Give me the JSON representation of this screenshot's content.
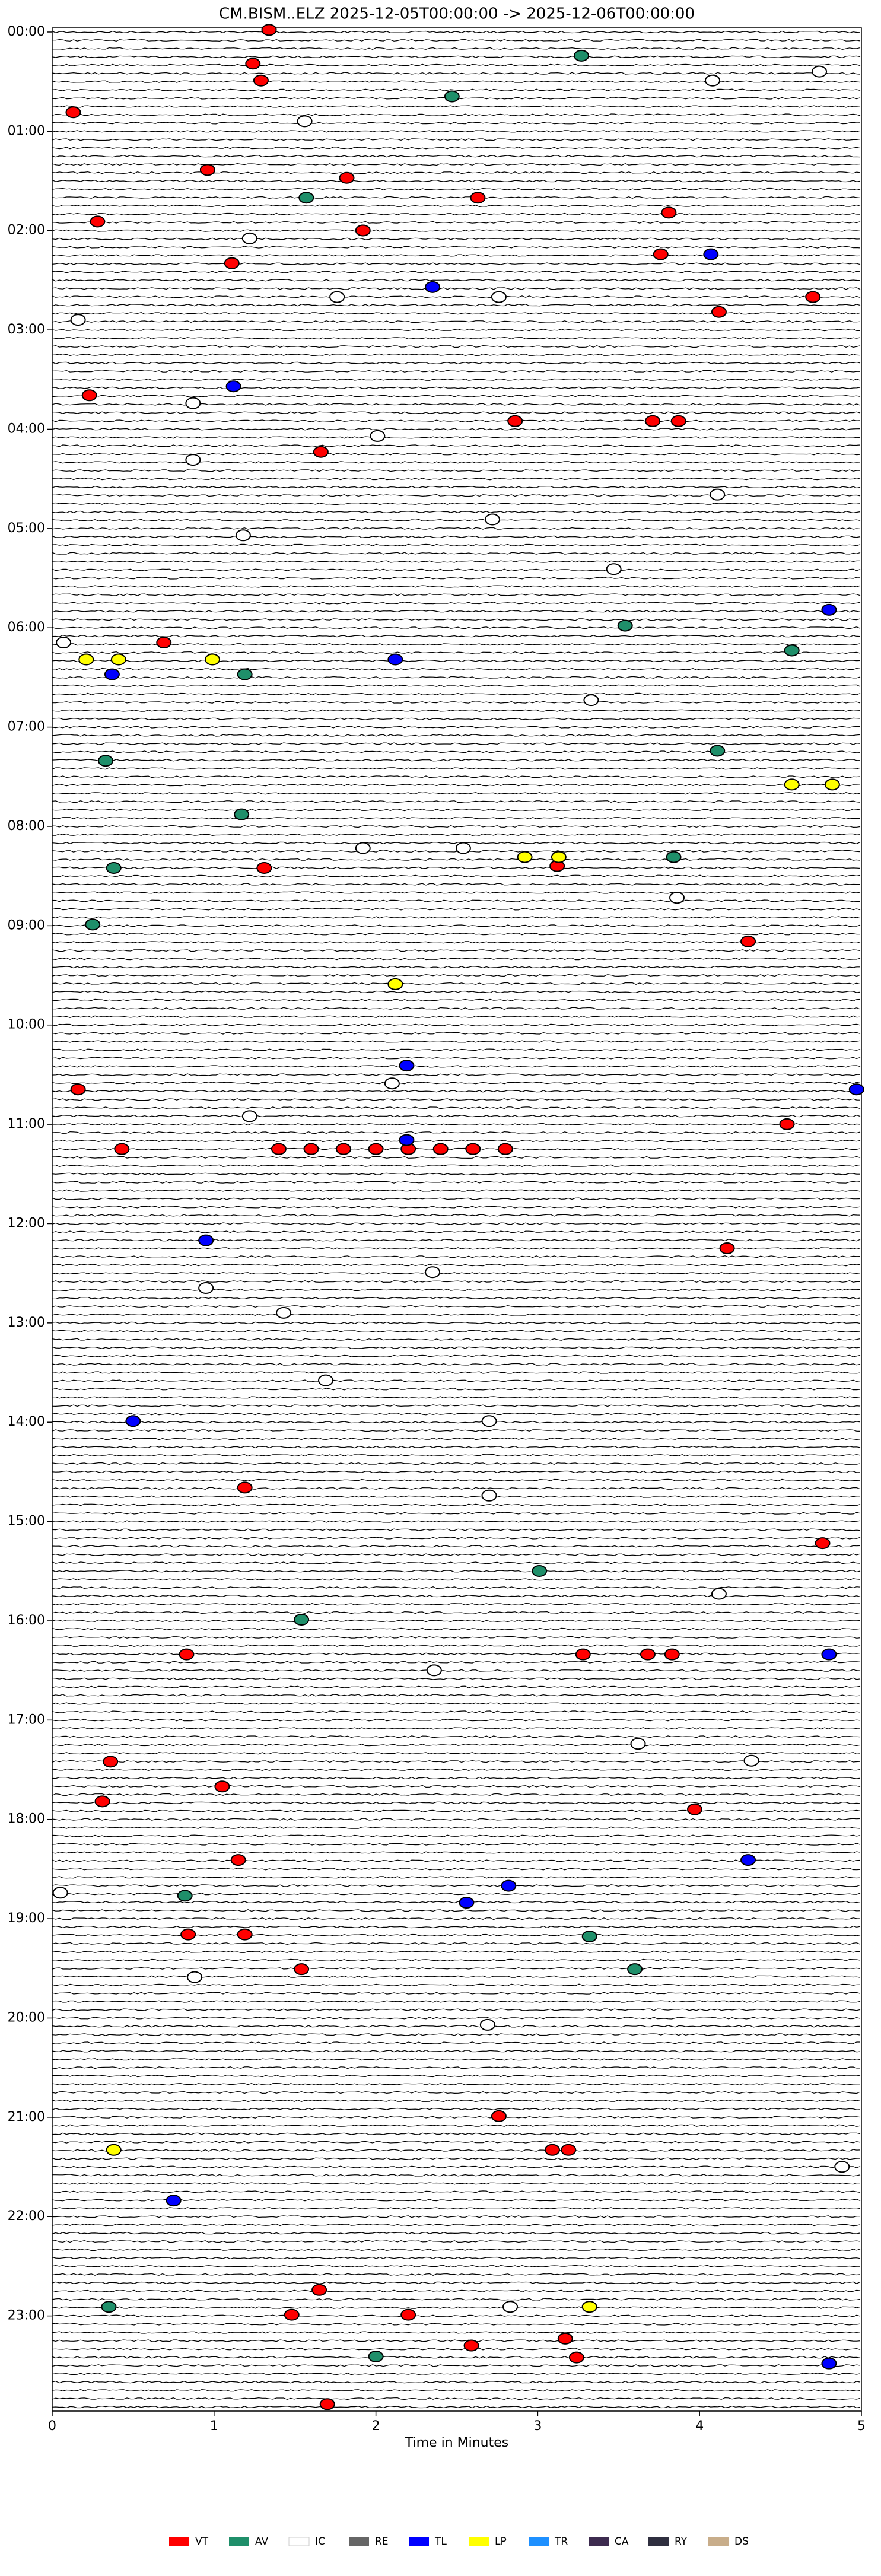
{
  "chart_data": {
    "type": "scatter",
    "title": "CM.BISM..ELZ  2025-12-05T00:00:00 -> 2025-12-06T00:00:00",
    "x_label": "Time in Minutes",
    "xlim": [
      0,
      5
    ],
    "xticks": [
      0,
      1,
      2,
      3,
      4,
      5
    ],
    "ylim": [
      0,
      24
    ],
    "yticks": [
      {
        "value": 0,
        "label": "00:00"
      },
      {
        "value": 1,
        "label": "01:00"
      },
      {
        "value": 2,
        "label": "02:00"
      },
      {
        "value": 3,
        "label": "03:00"
      },
      {
        "value": 4,
        "label": "04:00"
      },
      {
        "value": 5,
        "label": "05:00"
      },
      {
        "value": 6,
        "label": "06:00"
      },
      {
        "value": 7,
        "label": "07:00"
      },
      {
        "value": 8,
        "label": "08:00"
      },
      {
        "value": 9,
        "label": "09:00"
      },
      {
        "value": 10,
        "label": "10:00"
      },
      {
        "value": 11,
        "label": "11:00"
      },
      {
        "value": 12,
        "label": "12:00"
      },
      {
        "value": 13,
        "label": "13:00"
      },
      {
        "value": 14,
        "label": "14:00"
      },
      {
        "value": 15,
        "label": "15:00"
      },
      {
        "value": 16,
        "label": "16:00"
      },
      {
        "value": 17,
        "label": "17:00"
      },
      {
        "value": 18,
        "label": "18:00"
      },
      {
        "value": 19,
        "label": "19:00"
      },
      {
        "value": 20,
        "label": "20:00"
      },
      {
        "value": 21,
        "label": "21:00"
      },
      {
        "value": 22,
        "label": "22:00"
      },
      {
        "value": 23,
        "label": "23:00"
      }
    ],
    "series": [
      {
        "name": "VT",
        "color": "#ff0000",
        "x": [
          1.34,
          1.24,
          1.29,
          0.13,
          0.96,
          1.82,
          2.63,
          3.81,
          0.28,
          1.92,
          3.76,
          1.11,
          4.12,
          4.7,
          0.23,
          2.86,
          3.71,
          3.87,
          1.66,
          0.69,
          1.31,
          3.12,
          4.3,
          0.16,
          4.54,
          0.43,
          1.4,
          1.6,
          1.8,
          2.0,
          2.2,
          2.4,
          2.6,
          2.8,
          4.17,
          1.19,
          4.76,
          3.28,
          3.68,
          3.83,
          0.83,
          0.36,
          0.31,
          1.05,
          1.15,
          0.84,
          1.19,
          1.54,
          2.76,
          3.09,
          3.19,
          1.65,
          1.48,
          2.2,
          2.59,
          3.17,
          3.24,
          1.7,
          3.97
        ],
        "y": [
          0.02,
          0.36,
          0.53,
          0.85,
          1.43,
          1.51,
          1.71,
          1.86,
          1.95,
          2.04,
          2.28,
          2.37,
          2.86,
          2.71,
          3.7,
          3.96,
          3.96,
          3.96,
          4.27,
          6.19,
          8.46,
          8.44,
          9.2,
          10.69,
          11.04,
          11.29,
          11.29,
          11.29,
          11.29,
          11.29,
          11.29,
          11.29,
          11.29,
          11.29,
          12.29,
          14.7,
          15.26,
          16.38,
          16.38,
          16.38,
          16.38,
          17.46,
          17.86,
          17.71,
          18.45,
          19.2,
          19.2,
          19.55,
          21.03,
          21.37,
          21.37,
          22.78,
          23.03,
          23.03,
          23.34,
          23.27,
          23.46,
          23.93,
          17.94
        ]
      },
      {
        "name": "AV",
        "color": "#1f8f6a",
        "x": [
          3.27,
          2.47,
          1.57,
          3.54,
          4.57,
          1.19,
          4.11,
          0.33,
          1.17,
          0.38,
          3.84,
          0.25,
          3.01,
          1.54,
          0.82,
          3.32,
          3.6,
          0.35,
          2.0
        ],
        "y": [
          0.28,
          0.69,
          1.71,
          6.02,
          6.27,
          6.51,
          7.28,
          7.38,
          7.92,
          8.46,
          8.35,
          9.03,
          15.54,
          16.03,
          18.81,
          19.22,
          19.55,
          22.95,
          23.45
        ]
      },
      {
        "name": "IC",
        "color": "#ffffff",
        "x": [
          4.08,
          4.74,
          1.56,
          1.22,
          1.76,
          2.76,
          0.16,
          0.87,
          2.01,
          0.87,
          4.11,
          1.18,
          2.72,
          3.47,
          0.07,
          3.33,
          1.92,
          2.54,
          3.86,
          2.1,
          1.22,
          2.35,
          0.95,
          1.43,
          1.69,
          2.7,
          2.7,
          4.12,
          2.36,
          3.62,
          4.32,
          0.05,
          0.88,
          2.69,
          4.88,
          2.83
        ],
        "y": [
          0.53,
          0.44,
          0.94,
          2.12,
          2.71,
          2.71,
          2.94,
          3.78,
          4.11,
          4.35,
          4.7,
          5.11,
          4.95,
          5.45,
          6.19,
          6.77,
          8.26,
          8.26,
          8.76,
          10.63,
          10.96,
          12.53,
          12.69,
          12.94,
          13.62,
          14.03,
          14.78,
          15.77,
          16.54,
          17.28,
          17.45,
          18.78,
          19.63,
          20.11,
          21.54,
          22.95
        ]
      },
      {
        "name": "RE",
        "color": "#666666",
        "x": [],
        "y": []
      },
      {
        "name": "TL",
        "color": "#0000ff",
        "x": [
          4.07,
          2.35,
          1.12,
          0.37,
          2.12,
          4.8,
          2.19,
          4.97,
          2.19,
          0.95,
          0.5,
          4.8,
          4.3,
          2.82,
          2.56,
          0.75,
          4.8
        ],
        "y": [
          2.28,
          2.61,
          3.61,
          6.51,
          6.36,
          5.86,
          10.45,
          10.69,
          11.2,
          12.21,
          14.03,
          16.38,
          18.45,
          18.71,
          18.88,
          21.88,
          23.52
        ]
      },
      {
        "name": "LP",
        "color": "#ffff00",
        "x": [
          0.21,
          0.41,
          0.99,
          2.92,
          3.13,
          2.12,
          4.57,
          4.82,
          0.38,
          3.32
        ],
        "y": [
          6.36,
          6.36,
          6.36,
          8.35,
          8.35,
          9.63,
          7.62,
          7.62,
          21.37,
          22.95
        ]
      },
      {
        "name": "TR",
        "color": "#1e90ff",
        "x": [],
        "y": []
      },
      {
        "name": "CA",
        "color": "#3d2b4f",
        "x": [],
        "y": []
      },
      {
        "name": "RY",
        "color": "#2f2f3f",
        "x": [],
        "y": []
      },
      {
        "name": "DS",
        "color": "#c8ad8a",
        "x": [],
        "y": []
      }
    ]
  }
}
